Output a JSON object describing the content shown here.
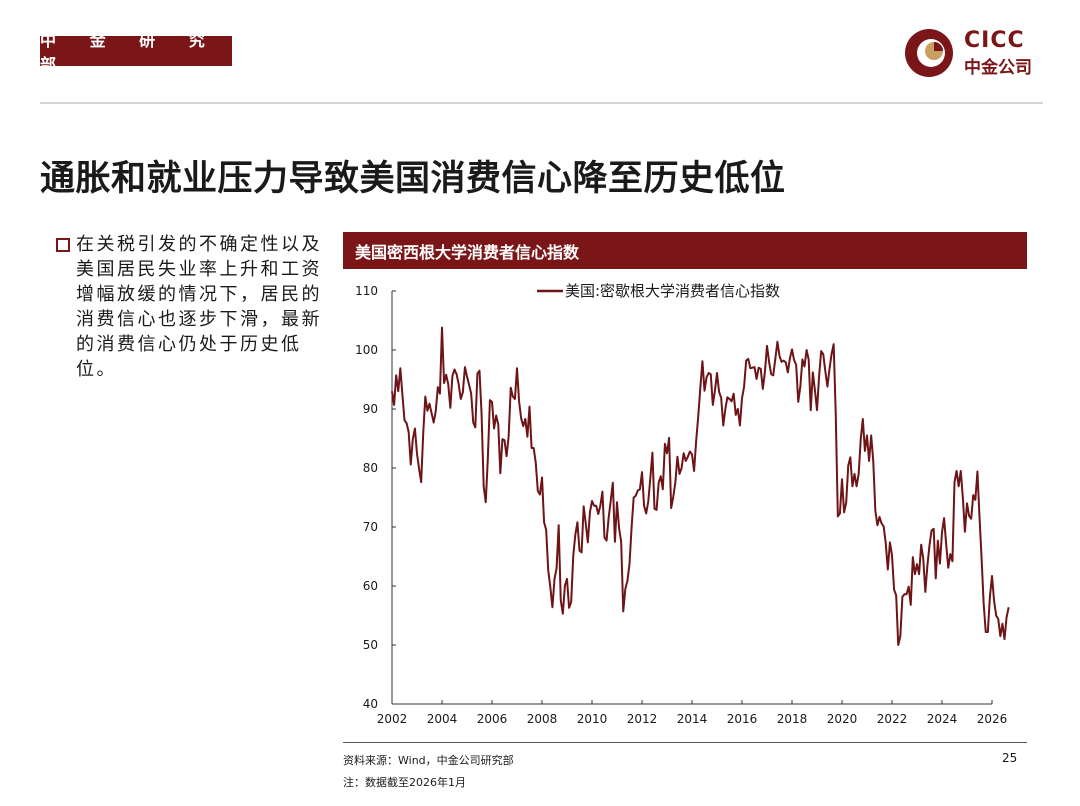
{
  "header": {
    "dept_label": "中 金 研 究 部",
    "logo_en": "CICC",
    "logo_cn": "中金公司"
  },
  "page_title": "通胀和就业压力导致美国消费信心降至历史低位",
  "bullet_text": "在关税引发的不确定性以及美国居民失业率上升和工资增幅放缓的情况下，居民的消费信心也逐步下滑，最新的消费信心仍处于历史低位。",
  "chart_header": "美国密西根大学消费者信心指数",
  "footer": {
    "source": "资料来源：Wind，中金公司研究部",
    "note": "注：数据截至2026年1月",
    "page": "25"
  },
  "colors": {
    "brand": "#7a1618",
    "logo_gold": "#c9a063"
  },
  "chart_data": {
    "type": "line",
    "series": [
      {
        "name": "美国:密歇根大学消费者信心指数",
        "color": "#6e1416",
        "x_start": 2002.0,
        "x_step": 0.0833333,
        "values": [
          93.0,
          90.7,
          95.7,
          93.0,
          96.9,
          92.4,
          88.1,
          87.6,
          86.1,
          80.6,
          84.9,
          86.7,
          82.4,
          79.9,
          77.6,
          86.0,
          92.1,
          89.7,
          90.9,
          89.3,
          87.7,
          89.6,
          93.7,
          92.6,
          103.8,
          94.4,
          95.8,
          94.2,
          90.2,
          95.6,
          96.7,
          95.9,
          94.2,
          91.7,
          92.8,
          97.1,
          95.5,
          94.1,
          92.6,
          87.7,
          86.9,
          96.0,
          96.5,
          89.1,
          76.9,
          74.2,
          81.6,
          91.5,
          91.2,
          86.7,
          88.9,
          87.4,
          79.1,
          84.9,
          84.7,
          82.0,
          85.4,
          93.6,
          92.1,
          91.7,
          96.9,
          91.3,
          88.4,
          87.1,
          88.3,
          85.3,
          90.4,
          83.4,
          83.4,
          80.9,
          76.1,
          75.5,
          78.4,
          70.8,
          69.5,
          62.6,
          59.8,
          56.4,
          61.2,
          63.0,
          70.3,
          57.6,
          55.3,
          60.1,
          61.2,
          56.3,
          57.3,
          65.1,
          68.7,
          70.8,
          66.0,
          65.7,
          73.5,
          70.6,
          67.4,
          72.5,
          74.4,
          73.6,
          73.6,
          72.2,
          73.6,
          76.0,
          68.2,
          67.7,
          71.6,
          74.5,
          77.5,
          67.5,
          74.2,
          69.8,
          67.5,
          55.7,
          59.5,
          60.9,
          63.7,
          69.9,
          75.0,
          75.3,
          76.2,
          76.4,
          79.3,
          73.6,
          72.3,
          74.3,
          78.3,
          82.6,
          73.1,
          72.9,
          77.5,
          78.6,
          76.4,
          84.1,
          82.5,
          85.1,
          73.2,
          75.1,
          77.5,
          81.9,
          79.0,
          80.0,
          82.5,
          81.2,
          81.9,
          82.8,
          82.3,
          79.5,
          84.6,
          88.8,
          93.6,
          98.1,
          93.1,
          95.4,
          96.1,
          95.9,
          90.7,
          93.1,
          96.1,
          92.9,
          91.9,
          87.2,
          90.0,
          92.0,
          91.7,
          91.3,
          92.6,
          89.0,
          90.0,
          87.2,
          91.8,
          93.8,
          98.2,
          98.5,
          96.9,
          97.0,
          97.1,
          95.1,
          97.0,
          96.8,
          93.4,
          96.3,
          100.7,
          98.0,
          95.9,
          95.7,
          98.5,
          101.4,
          99.0,
          98.0,
          98.2,
          97.9,
          96.2,
          98.6,
          100.1,
          98.3,
          97.5,
          91.2,
          93.8,
          98.4,
          97.2,
          100.0,
          98.4,
          89.8,
          96.2,
          93.2,
          89.8,
          95.5,
          99.8,
          99.3,
          96.4,
          93.8,
          96.8,
          99.3,
          101.0,
          89.1,
          71.8,
          72.3,
          78.1,
          72.5,
          74.1,
          80.4,
          81.8,
          76.9,
          79.0,
          76.9,
          79.0,
          84.9,
          88.3,
          82.9,
          85.5,
          81.2,
          85.5,
          81.2,
          72.8,
          70.3,
          71.7,
          70.6,
          70.1,
          67.2,
          62.8,
          67.4,
          65.2,
          59.4,
          58.4,
          50.0,
          51.5,
          58.2,
          58.6,
          58.6,
          59.9,
          56.8,
          64.9,
          62.0,
          63.7,
          62.0,
          67.0,
          64.6,
          59.0,
          63.5,
          66.9,
          69.4,
          69.7,
          61.3,
          67.7,
          63.8,
          69.1,
          71.5,
          67.1,
          63.1,
          65.4,
          64.2,
          77.6,
          79.5,
          76.9,
          79.5,
          75.0,
          69.2,
          74.0,
          71.9,
          71.4,
          75.4,
          74.6,
          79.4,
          71.7,
          64.7,
          57.0,
          52.2,
          52.2,
          58.2,
          61.7,
          57.5,
          55.0,
          54.4,
          51.5,
          53.6,
          51.0,
          54.7,
          56.4
        ]
      }
    ],
    "xlim": [
      2002,
      2026
    ],
    "ylim": [
      40,
      110
    ],
    "x_ticks": [
      2002,
      2004,
      2006,
      2008,
      2010,
      2012,
      2014,
      2016,
      2018,
      2020,
      2022,
      2024,
      2026
    ],
    "y_ticks": [
      40,
      50,
      60,
      70,
      80,
      90,
      100,
      110
    ],
    "title": "美国密西根大学消费者信心指数",
    "legend_position": "top-center",
    "grid": false
  }
}
